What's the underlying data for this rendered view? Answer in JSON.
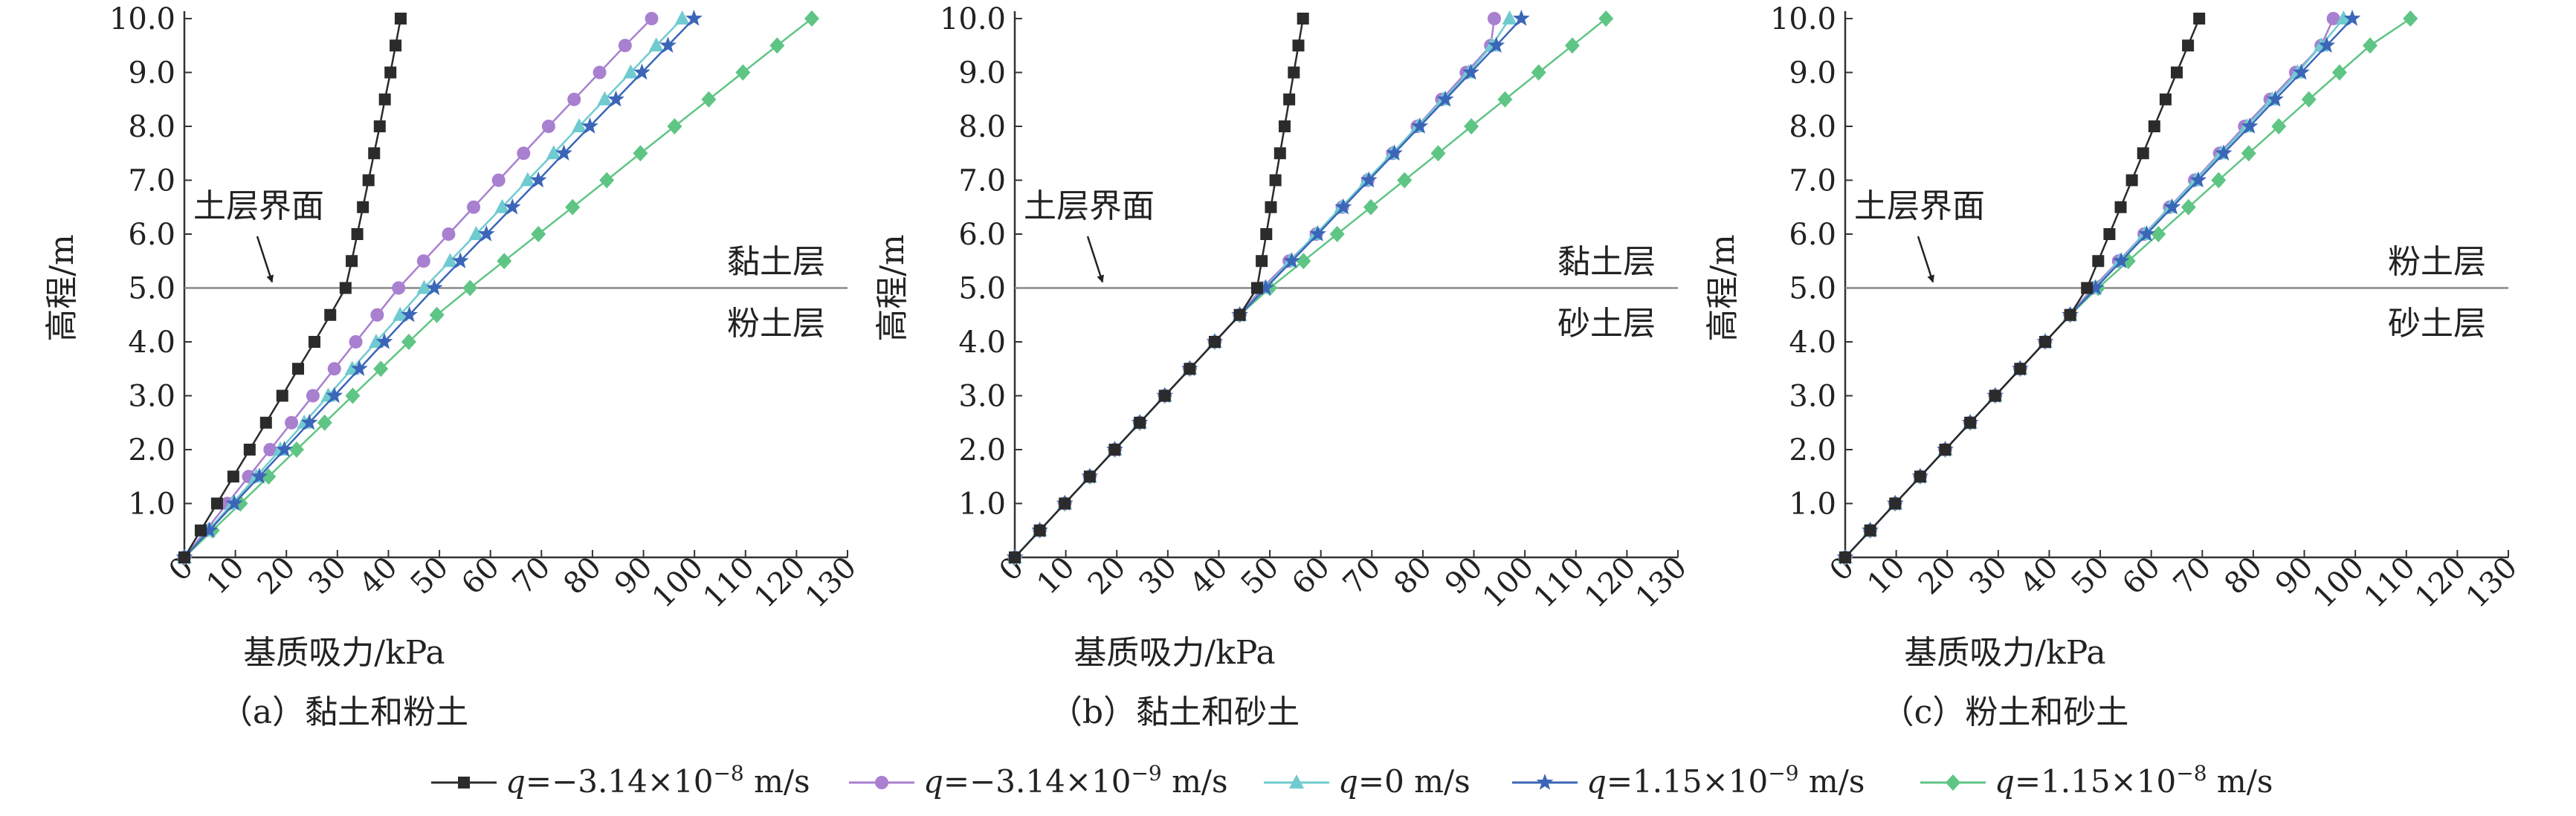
{
  "chart_data": {
    "type": "line",
    "panels": [
      {
        "caption": "（a）黏土和粉土",
        "xlabel": "基质吸力/kPa",
        "ylabel": "高程/m",
        "xlim": [
          0,
          130
        ],
        "ylim": [
          0,
          10
        ],
        "xticks": [
          "0",
          "10",
          "20",
          "30",
          "40",
          "50",
          "60",
          "70",
          "80",
          "90",
          "100",
          "110",
          "120",
          "130"
        ],
        "yticks": [
          "1.0",
          "2.0",
          "3.0",
          "4.0",
          "5.0",
          "6.0",
          "7.0",
          "8.0",
          "9.0",
          "10.0"
        ],
        "interface_level": 5.0,
        "interface_label": "土层界面",
        "upper_layer": "黏土层",
        "lower_layer": "粉土层",
        "series": [
          {
            "y": [
              0,
              0.5,
              1,
              1.5,
              2,
              2.5,
              3,
              3.5,
              4,
              4.5,
              5,
              5.5,
              6,
              6.5,
              7,
              7.5,
              8,
              8.5,
              9,
              9.5,
              10
            ],
            "x": [
              0,
              3.2,
              6.4,
              9.6,
              12.8,
              16,
              19.2,
              22.3,
              25.5,
              28.6,
              31.6,
              32.8,
              33.9,
              35.0,
              36.1,
              37.2,
              38.3,
              39.3,
              40.4,
              41.4,
              42.4
            ]
          },
          {
            "y": [
              0,
              0.5,
              1,
              1.5,
              2,
              2.5,
              3,
              3.5,
              4,
              4.5,
              5,
              5.5,
              6,
              6.5,
              7,
              7.5,
              8,
              8.5,
              9,
              9.5,
              10
            ],
            "x": [
              0,
              4.2,
              8.4,
              12.6,
              16.8,
              21.0,
              25.2,
              29.4,
              33.6,
              37.8,
              42.0,
              46.9,
              51.8,
              56.7,
              61.6,
              66.5,
              71.4,
              76.4,
              81.4,
              86.4,
              91.6
            ]
          },
          {
            "y": [
              0,
              0.5,
              1,
              1.5,
              2,
              2.5,
              3,
              3.5,
              4,
              4.5,
              5,
              5.5,
              6,
              6.5,
              7,
              7.5,
              8,
              8.5,
              9,
              9.5,
              10
            ],
            "x": [
              0,
              4.7,
              9.4,
              14.1,
              18.8,
              23.5,
              28.2,
              32.9,
              37.6,
              42.3,
              47.0,
              52.1,
              57.2,
              62.3,
              67.3,
              72.4,
              77.4,
              82.4,
              87.5,
              92.5,
              97.6
            ]
          },
          {
            "y": [
              0,
              0.5,
              1,
              1.5,
              2,
              2.5,
              3,
              3.5,
              4,
              4.5,
              5,
              5.5,
              6,
              6.5,
              7,
              7.5,
              8,
              8.5,
              9,
              9.5,
              10
            ],
            "x": [
              0,
              4.9,
              9.8,
              14.7,
              19.6,
              24.5,
              29.4,
              34.3,
              39.2,
              44.1,
              49.0,
              54.1,
              59.2,
              64.3,
              69.4,
              74.4,
              79.5,
              84.6,
              89.7,
              94.8,
              99.9
            ]
          },
          {
            "y": [
              0,
              0.5,
              1,
              1.5,
              2,
              2.5,
              3,
              3.5,
              4,
              4.5,
              5,
              5.5,
              6,
              6.5,
              7,
              7.5,
              8,
              8.5,
              9,
              9.5,
              10
            ],
            "x": [
              0,
              5.5,
              11.0,
              16.5,
              22.0,
              27.5,
              33.0,
              38.5,
              44.0,
              49.5,
              56.0,
              62.7,
              69.4,
              76.1,
              82.8,
              89.4,
              96.1,
              102.8,
              109.5,
              116.2,
              123.0
            ]
          }
        ]
      },
      {
        "caption": "（b）黏土和砂土",
        "xlabel": "基质吸力/kPa",
        "ylabel": "高程/m",
        "xlim": [
          0,
          130
        ],
        "ylim": [
          0,
          10
        ],
        "xticks": [
          "0",
          "10",
          "20",
          "30",
          "40",
          "50",
          "60",
          "70",
          "80",
          "90",
          "100",
          "110",
          "120",
          "130"
        ],
        "yticks": [
          "1.0",
          "2.0",
          "3.0",
          "4.0",
          "5.0",
          "6.0",
          "7.0",
          "8.0",
          "9.0",
          "10.0"
        ],
        "interface_level": 5.0,
        "interface_label": "土层界面",
        "upper_layer": "黏土层",
        "lower_layer": "砂土层",
        "series": [
          {
            "y": [
              0,
              0.5,
              1,
              1.5,
              2,
              2.5,
              3,
              3.5,
              4,
              4.5,
              5,
              5.5,
              6,
              6.5,
              7,
              7.5,
              8,
              8.5,
              9,
              9.5,
              10
            ],
            "x": [
              0,
              4.9,
              9.8,
              14.7,
              19.6,
              24.5,
              29.4,
              34.3,
              39.2,
              44.1,
              47.5,
              48.4,
              49.3,
              50.2,
              51.1,
              52.0,
              52.9,
              53.8,
              54.7,
              55.6,
              56.5
            ]
          },
          {
            "y": [
              0,
              0.5,
              1,
              1.5,
              2,
              2.5,
              3,
              3.5,
              4,
              4.5,
              5,
              5.5,
              6,
              6.5,
              7,
              7.5,
              8,
              8.5,
              9,
              9.5,
              10
            ],
            "x": [
              0,
              4.9,
              9.8,
              14.7,
              19.6,
              24.5,
              29.4,
              34.3,
              39.2,
              44.1,
              48.5,
              53.8,
              59.1,
              64.2,
              69.2,
              74.1,
              78.9,
              83.7,
              88.5,
              93.3,
              94.0
            ]
          },
          {
            "y": [
              0,
              0.5,
              1,
              1.5,
              2,
              2.5,
              3,
              3.5,
              4,
              4.5,
              5,
              5.5,
              6,
              6.5,
              7,
              7.5,
              8,
              8.5,
              9,
              9.5,
              10
            ],
            "x": [
              0,
              4.9,
              9.8,
              14.7,
              19.6,
              24.5,
              29.4,
              34.3,
              39.2,
              44.1,
              49.0,
              54.0,
              59.0,
              64.0,
              69.0,
              74.0,
              79.0,
              84.0,
              89.0,
              93.5,
              97.0
            ]
          },
          {
            "y": [
              0,
              0.5,
              1,
              1.5,
              2,
              2.5,
              3,
              3.5,
              4,
              4.5,
              5,
              5.5,
              6,
              6.5,
              7,
              7.5,
              8,
              8.5,
              9,
              9.5,
              10
            ],
            "x": [
              0,
              4.9,
              9.8,
              14.7,
              19.6,
              24.5,
              29.4,
              34.3,
              39.2,
              44.1,
              49.2,
              54.3,
              59.4,
              64.4,
              69.4,
              74.4,
              79.4,
              84.4,
              89.4,
              94.4,
              99.3
            ]
          },
          {
            "y": [
              0,
              0.5,
              1,
              1.5,
              2,
              2.5,
              3,
              3.5,
              4,
              4.5,
              5,
              5.5,
              6,
              6.5,
              7,
              7.5,
              8,
              8.5,
              9,
              9.5,
              10
            ],
            "x": [
              0,
              4.9,
              9.8,
              14.7,
              19.6,
              24.5,
              29.4,
              34.3,
              39.2,
              44.1,
              50.0,
              56.6,
              63.2,
              69.8,
              76.4,
              83.0,
              89.5,
              96.1,
              102.7,
              109.3,
              115.9
            ]
          }
        ]
      },
      {
        "caption": "（c）粉土和砂土",
        "xlabel": "基质吸力/kPa",
        "ylabel": "高程/m",
        "xlim": [
          0,
          130
        ],
        "ylim": [
          0,
          10
        ],
        "xticks": [
          "0",
          "10",
          "20",
          "30",
          "40",
          "50",
          "60",
          "70",
          "80",
          "90",
          "100",
          "110",
          "120",
          "130"
        ],
        "yticks": [
          "1.0",
          "2.0",
          "3.0",
          "4.0",
          "5.0",
          "6.0",
          "7.0",
          "8.0",
          "9.0",
          "10.0"
        ],
        "interface_level": 5.0,
        "interface_label": "土层界面",
        "upper_layer": "粉土层",
        "lower_layer": "砂土层",
        "series": [
          {
            "y": [
              0,
              0.5,
              1,
              1.5,
              2,
              2.5,
              3,
              3.5,
              4,
              4.5,
              5,
              5.5,
              6,
              6.5,
              7,
              7.5,
              8,
              8.5,
              9,
              9.5,
              10
            ],
            "x": [
              0,
              4.9,
              9.8,
              14.7,
              19.6,
              24.5,
              29.4,
              34.3,
              39.2,
              44.1,
              47.4,
              49.6,
              51.8,
              54.0,
              56.2,
              58.4,
              60.6,
              62.8,
              65.0,
              67.2,
              69.4
            ]
          },
          {
            "y": [
              0,
              0.5,
              1,
              1.5,
              2,
              2.5,
              3,
              3.5,
              4,
              4.5,
              5,
              5.5,
              6,
              6.5,
              7,
              7.5,
              8,
              8.5,
              9,
              9.5,
              10
            ],
            "x": [
              0,
              4.9,
              9.8,
              14.7,
              19.6,
              24.5,
              29.4,
              34.3,
              39.2,
              44.1,
              48.5,
              53.6,
              58.6,
              63.6,
              68.5,
              73.4,
              78.3,
              83.3,
              88.3,
              93.3,
              95.7
            ]
          },
          {
            "y": [
              0,
              0.5,
              1,
              1.5,
              2,
              2.5,
              3,
              3.5,
              4,
              4.5,
              5,
              5.5,
              6,
              6.5,
              7,
              7.5,
              8,
              8.5,
              9,
              9.5,
              10
            ],
            "x": [
              0,
              4.9,
              9.8,
              14.7,
              19.6,
              24.5,
              29.4,
              34.3,
              39.2,
              44.1,
              48.9,
              53.8,
              58.7,
              63.7,
              68.7,
              73.7,
              78.7,
              83.7,
              88.7,
              93.3,
              97.7
            ]
          },
          {
            "y": [
              0,
              0.5,
              1,
              1.5,
              2,
              2.5,
              3,
              3.5,
              4,
              4.5,
              5,
              5.5,
              6,
              6.5,
              7,
              7.5,
              8,
              8.5,
              9,
              9.5,
              10
            ],
            "x": [
              0,
              4.9,
              9.8,
              14.7,
              19.6,
              24.5,
              29.4,
              34.3,
              39.2,
              44.1,
              49.1,
              54.1,
              59.1,
              64.1,
              69.2,
              74.2,
              79.3,
              84.3,
              89.4,
              94.4,
              99.4
            ]
          },
          {
            "y": [
              0,
              0.5,
              1,
              1.5,
              2,
              2.5,
              3,
              3.5,
              4,
              4.5,
              5,
              5.5,
              6,
              6.5,
              7,
              7.5,
              8,
              8.5,
              9,
              9.5,
              10
            ],
            "x": [
              0,
              4.9,
              9.8,
              14.7,
              19.6,
              24.5,
              29.4,
              34.3,
              39.2,
              44.1,
              49.6,
              55.5,
              61.4,
              67.3,
              73.2,
              79.1,
              85.0,
              90.9,
              96.9,
              102.9,
              110.8
            ]
          }
        ]
      }
    ],
    "legend_position": "bottom",
    "legend": [
      {
        "name": "q=−3.14×10⁻⁸ m/s",
        "sym": "q",
        "rest": "=−3.14×10",
        "exp": "−8",
        "unit": " m/s",
        "color": "#2b2b2b",
        "marker": "square"
      },
      {
        "name": "q=−3.14×10⁻⁹ m/s",
        "sym": "q",
        "rest": "=−3.14×10",
        "exp": "−9",
        "unit": " m/s",
        "color": "#a97fd0",
        "marker": "circle"
      },
      {
        "name": "q=0 m/s",
        "sym": "q",
        "rest": "=0 m/s",
        "exp": "",
        "unit": "",
        "color": "#6fcbd0",
        "marker": "triangle"
      },
      {
        "name": "q=1.15×10⁻⁹ m/s",
        "sym": "q",
        "rest": "=1.15×10",
        "exp": "−9",
        "unit": " m/s",
        "color": "#3b66b8",
        "marker": "star"
      },
      {
        "name": "q=1.15×10⁻⁸ m/s",
        "sym": "q",
        "rest": "=1.15×10",
        "exp": "−8",
        "unit": " m/s",
        "color": "#5fc584",
        "marker": "diamond"
      }
    ]
  }
}
